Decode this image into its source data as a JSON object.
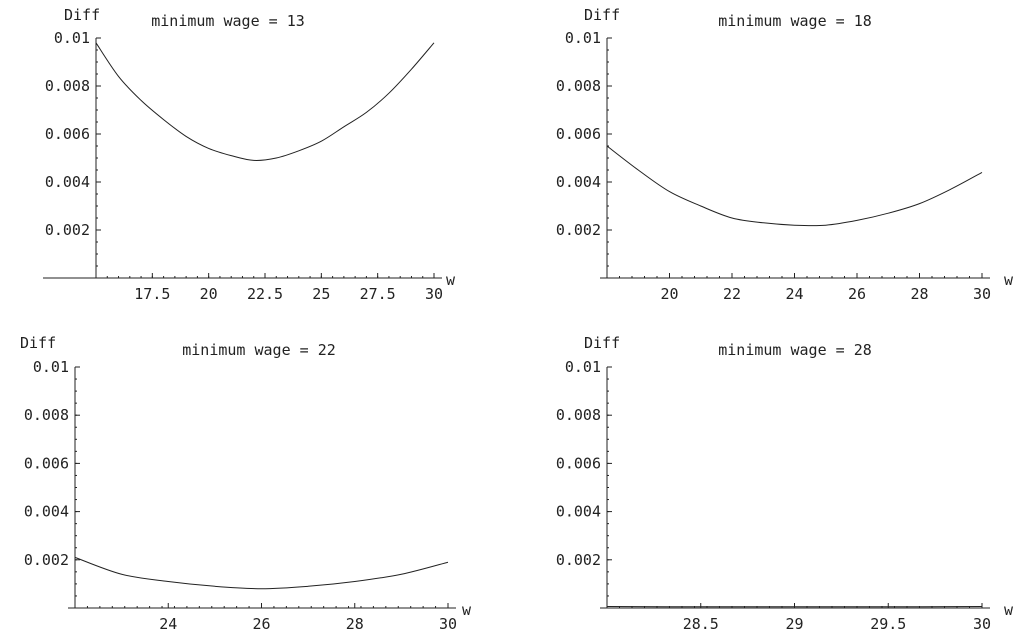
{
  "chart_data": [
    {
      "type": "line",
      "title": "minimum wage = 13",
      "xlabel": "w",
      "ylabel": "Diff",
      "xlim": [
        15,
        30
      ],
      "ylim": [
        0,
        0.01
      ],
      "xticks": [
        17.5,
        20,
        22.5,
        25,
        27.5,
        30
      ],
      "xtick_labels": [
        "17.5",
        "20",
        "22.5",
        "25",
        "27.5",
        "30"
      ],
      "yticks": [
        0.002,
        0.004,
        0.006,
        0.008,
        0.01
      ],
      "ytick_labels": [
        "0.002",
        "0.004",
        "0.006",
        "0.008",
        "0.01"
      ],
      "grid": false,
      "series": [
        {
          "x": [
            15,
            16,
            17,
            18,
            19,
            20,
            21,
            22,
            23,
            24,
            25,
            26,
            27,
            28,
            29,
            30
          ],
          "y": [
            0.0098,
            0.0084,
            0.0074,
            0.0066,
            0.0059,
            0.0054,
            0.0051,
            0.0049,
            0.005,
            0.0053,
            0.0057,
            0.0063,
            0.0069,
            0.0077,
            0.0087,
            0.0098
          ]
        }
      ]
    },
    {
      "type": "line",
      "title": "minimum wage = 18",
      "xlabel": "w",
      "ylabel": "Diff",
      "xlim": [
        18,
        30
      ],
      "ylim": [
        0,
        0.01
      ],
      "xticks": [
        20,
        22,
        24,
        26,
        28,
        30
      ],
      "xtick_labels": [
        "20",
        "22",
        "24",
        "26",
        "28",
        "30"
      ],
      "yticks": [
        0.002,
        0.004,
        0.006,
        0.008,
        0.01
      ],
      "ytick_labels": [
        "0.002",
        "0.004",
        "0.006",
        "0.008",
        "0.01"
      ],
      "grid": false,
      "series": [
        {
          "x": [
            18,
            19,
            20,
            21,
            22,
            23,
            24,
            25,
            26,
            27,
            28,
            29,
            30
          ],
          "y": [
            0.0055,
            0.0045,
            0.0036,
            0.003,
            0.0025,
            0.0023,
            0.0022,
            0.0022,
            0.0024,
            0.0027,
            0.0031,
            0.0037,
            0.0044
          ]
        }
      ]
    },
    {
      "type": "line",
      "title": "minimum wage = 22",
      "xlabel": "w",
      "ylabel": "Diff",
      "xlim": [
        22,
        30
      ],
      "ylim": [
        0,
        0.01
      ],
      "xticks": [
        24,
        26,
        28,
        30
      ],
      "xtick_labels": [
        "24",
        "26",
        "28",
        "30"
      ],
      "yticks": [
        0.002,
        0.004,
        0.006,
        0.008,
        0.01
      ],
      "ytick_labels": [
        "0.002",
        "0.004",
        "0.006",
        "0.008",
        "0.01"
      ],
      "grid": false,
      "series": [
        {
          "x": [
            22,
            23,
            24,
            25,
            26,
            27,
            28,
            29,
            30
          ],
          "y": [
            0.0021,
            0.0014,
            0.0011,
            0.0009,
            0.0008,
            0.0009,
            0.0011,
            0.0014,
            0.0019
          ]
        }
      ]
    },
    {
      "type": "line",
      "title": "minimum wage = 28",
      "xlabel": "w",
      "ylabel": "Diff",
      "xlim": [
        28,
        30
      ],
      "ylim": [
        0,
        0.01
      ],
      "xticks": [
        28.5,
        29,
        29.5,
        30
      ],
      "xtick_labels": [
        "28.5",
        "29",
        "29.5",
        "30"
      ],
      "yticks": [
        0.002,
        0.004,
        0.006,
        0.008,
        0.01
      ],
      "ytick_labels": [
        "0.002",
        "0.004",
        "0.006",
        "0.008",
        "0.01"
      ],
      "grid": false,
      "series": [
        {
          "x": [
            28,
            28.5,
            29,
            29.5,
            30
          ],
          "y": [
            6e-05,
            5e-05,
            5e-05,
            5e-05,
            6e-05
          ]
        }
      ]
    }
  ]
}
